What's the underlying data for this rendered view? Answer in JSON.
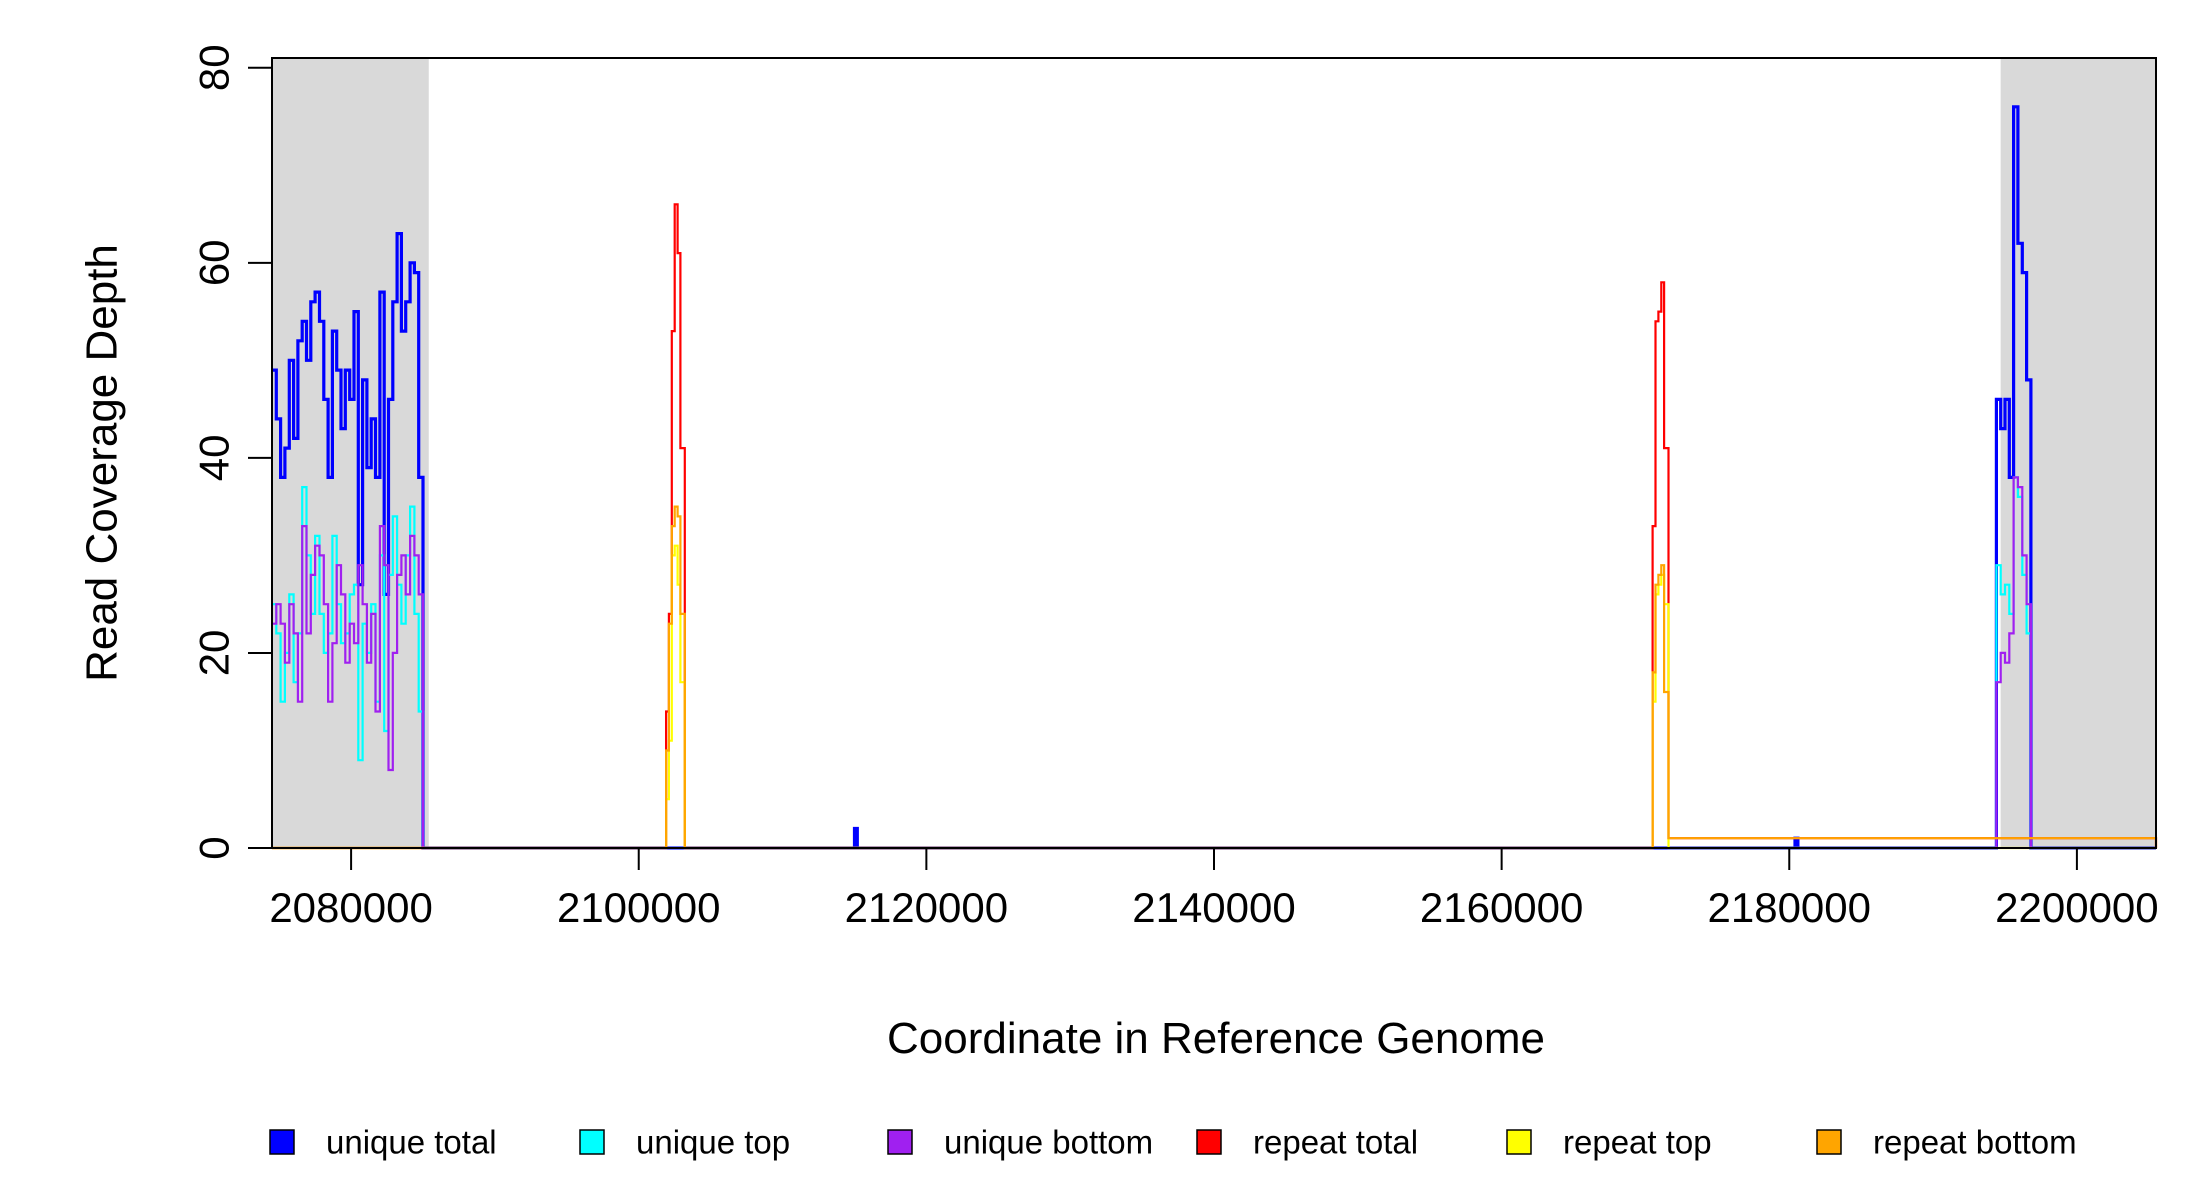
{
  "chart_data": {
    "type": "line",
    "step": true,
    "xlabel": "Coordinate in Reference Genome",
    "ylabel": "Read Coverage Depth",
    "xlim": [
      2074500,
      2205500
    ],
    "ylim": [
      0,
      81
    ],
    "x_ticks": [
      2080000,
      2100000,
      2120000,
      2140000,
      2160000,
      2180000,
      2200000
    ],
    "x_tick_labels": [
      "2080000",
      "2100000",
      "2120000",
      "2140000",
      "2160000",
      "2180000",
      "2200000"
    ],
    "y_ticks": [
      0,
      20,
      40,
      60,
      80
    ],
    "y_tick_labels": [
      "0",
      "20",
      "40",
      "60",
      "80"
    ],
    "shaded_regions": [
      {
        "x0": 2074500,
        "x1": 2085400,
        "color": "#d9d9d9"
      },
      {
        "x0": 2194700,
        "x1": 2205500,
        "color": "#d9d9d9"
      }
    ],
    "legend_position": "bottom",
    "series": [
      {
        "name": "unique total",
        "color": "#0000ff",
        "x": [
          2074500,
          2074800,
          2075100,
          2075400,
          2075700,
          2076000,
          2076300,
          2076600,
          2076900,
          2077200,
          2077500,
          2077800,
          2078100,
          2078400,
          2078700,
          2079000,
          2079300,
          2079600,
          2079900,
          2080200,
          2080500,
          2080800,
          2081100,
          2081400,
          2081700,
          2082000,
          2082300,
          2082600,
          2082900,
          2083200,
          2083500,
          2083800,
          2084100,
          2084400,
          2084700,
          2085000,
          2085300,
          2100000,
          2115000,
          2115200,
          2115400,
          2180400,
          2180600,
          2180800,
          2194400,
          2194700,
          2195000,
          2195300,
          2195600,
          2195900,
          2196200,
          2196500,
          2196800,
          2205500
        ],
        "y": [
          49,
          44,
          38,
          41,
          50,
          42,
          52,
          54,
          50,
          56,
          57,
          54,
          46,
          38,
          53,
          49,
          43,
          49,
          46,
          55,
          27,
          48,
          39,
          44,
          38,
          57,
          26,
          46,
          56,
          63,
          53,
          56,
          60,
          59,
          38,
          0,
          0,
          0,
          2,
          0,
          0,
          1,
          0,
          0,
          46,
          43,
          46,
          38,
          76,
          62,
          59,
          48,
          0,
          0
        ]
      },
      {
        "name": "unique top",
        "color": "#00ffff",
        "x": [
          2074500,
          2074800,
          2075100,
          2075400,
          2075700,
          2076000,
          2076300,
          2076600,
          2076900,
          2077200,
          2077500,
          2077800,
          2078100,
          2078400,
          2078700,
          2079000,
          2079300,
          2079600,
          2079900,
          2080200,
          2080500,
          2080800,
          2081100,
          2081400,
          2081700,
          2082000,
          2082300,
          2082600,
          2082900,
          2083200,
          2083500,
          2083800,
          2084100,
          2084400,
          2084700,
          2085000,
          2085300,
          2194400,
          2194700,
          2195000,
          2195300,
          2195600,
          2195900,
          2196200,
          2196500,
          2196800,
          2205500
        ],
        "y": [
          25,
          22,
          15,
          20,
          26,
          17,
          22,
          37,
          30,
          24,
          32,
          24,
          20,
          22,
          32,
          25,
          21,
          22,
          26,
          27,
          9,
          23,
          20,
          25,
          15,
          30,
          12,
          28,
          34,
          27,
          23,
          30,
          35,
          24,
          14,
          0,
          0,
          29,
          26,
          27,
          24,
          38,
          36,
          28,
          22,
          0,
          0
        ]
      },
      {
        "name": "unique bottom",
        "color": "#a020f0",
        "x": [
          2074500,
          2074800,
          2075100,
          2075400,
          2075700,
          2076000,
          2076300,
          2076600,
          2076900,
          2077200,
          2077500,
          2077800,
          2078100,
          2078400,
          2078700,
          2079000,
          2079300,
          2079600,
          2079900,
          2080200,
          2080500,
          2080800,
          2081100,
          2081400,
          2081700,
          2082000,
          2082300,
          2082600,
          2082900,
          2083200,
          2083500,
          2083800,
          2084100,
          2084400,
          2084700,
          2085000,
          2085300,
          2194400,
          2194700,
          2195000,
          2195300,
          2195600,
          2195900,
          2196200,
          2196500,
          2196800,
          2205500
        ],
        "y": [
          23,
          25,
          23,
          19,
          25,
          22,
          15,
          33,
          22,
          28,
          31,
          30,
          25,
          15,
          21,
          29,
          26,
          19,
          23,
          21,
          29,
          25,
          19,
          24,
          14,
          33,
          29,
          8,
          20,
          28,
          30,
          26,
          32,
          30,
          26,
          0,
          0,
          17,
          20,
          19,
          22,
          38,
          37,
          30,
          25,
          0,
          0
        ]
      },
      {
        "name": "repeat total",
        "color": "#ff0000",
        "x": [
          2074500,
          2101900,
          2102100,
          2102300,
          2102500,
          2102700,
          2102900,
          2103200,
          2170300,
          2170500,
          2170700,
          2170900,
          2171100,
          2171300,
          2171600,
          2205500
        ],
        "y": [
          0,
          14,
          24,
          53,
          66,
          61,
          41,
          0,
          0,
          33,
          54,
          55,
          58,
          41,
          1,
          0
        ]
      },
      {
        "name": "repeat top",
        "color": "#ffff00",
        "x": [
          2074500,
          2101900,
          2102100,
          2102300,
          2102500,
          2102700,
          2102900,
          2103200,
          2170300,
          2170500,
          2170700,
          2170900,
          2171100,
          2171300,
          2171600,
          2205500
        ],
        "y": [
          0,
          5,
          11,
          30,
          31,
          27,
          17,
          0,
          0,
          15,
          26,
          27,
          28,
          25,
          0,
          0
        ]
      },
      {
        "name": "repeat bottom",
        "color": "#ffa500",
        "x": [
          2074500,
          2101900,
          2102100,
          2102300,
          2102500,
          2102700,
          2102900,
          2103200,
          2170300,
          2170500,
          2170700,
          2170900,
          2171100,
          2171300,
          2171600,
          2205500
        ],
        "y": [
          0,
          10,
          23,
          33,
          35,
          34,
          24,
          0,
          0,
          18,
          27,
          28,
          29,
          16,
          1,
          0
        ]
      }
    ]
  }
}
